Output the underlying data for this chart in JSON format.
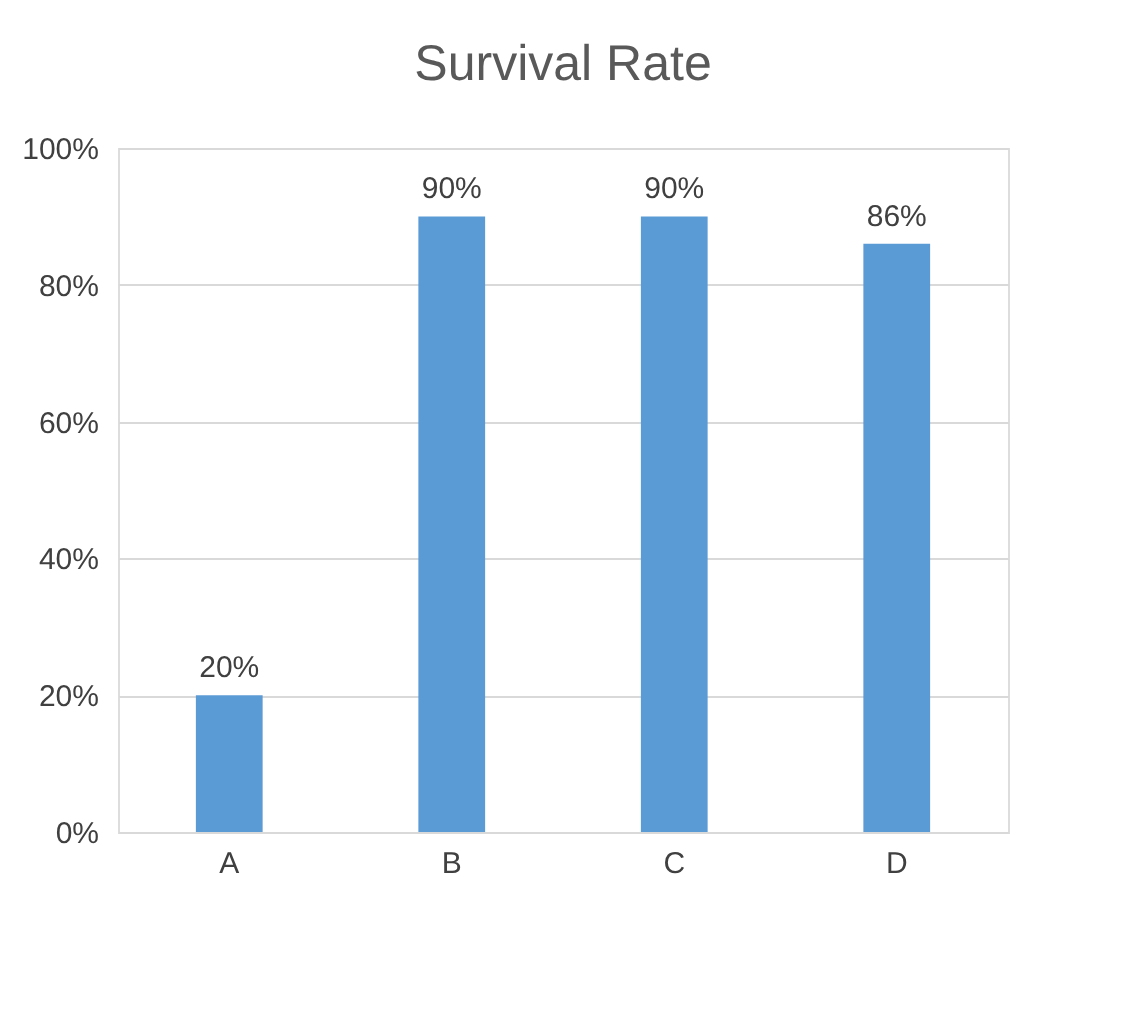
{
  "chart_data": {
    "type": "bar",
    "title": "Survival Rate",
    "categories": [
      "A",
      "B",
      "C",
      "D"
    ],
    "values": [
      20,
      90,
      90,
      86
    ],
    "value_labels": [
      "20%",
      "90%",
      "90%",
      "86%"
    ],
    "color": "#5b9bd5",
    "ylim": [
      0,
      100
    ],
    "yticks": [
      {
        "value": 0,
        "label": "0%"
      },
      {
        "value": 20,
        "label": "20%"
      },
      {
        "value": 40,
        "label": "40%"
      },
      {
        "value": 60,
        "label": "60%"
      },
      {
        "value": 80,
        "label": "80%"
      },
      {
        "value": 100,
        "label": "100%"
      }
    ],
    "grid": "y"
  }
}
